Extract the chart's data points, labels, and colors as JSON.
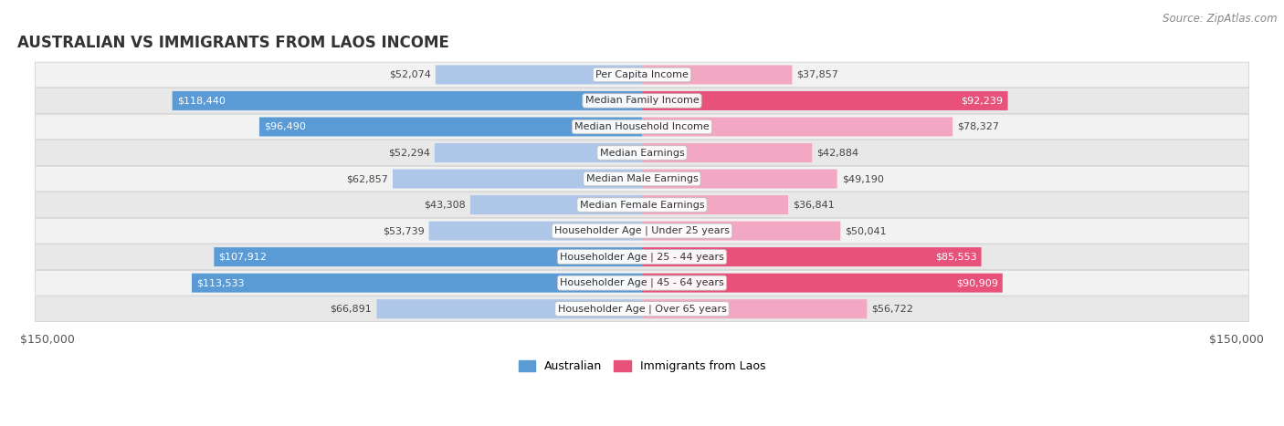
{
  "title": "AUSTRALIAN VS IMMIGRANTS FROM LAOS INCOME",
  "source": "Source: ZipAtlas.com",
  "categories": [
    "Per Capita Income",
    "Median Family Income",
    "Median Household Income",
    "Median Earnings",
    "Median Male Earnings",
    "Median Female Earnings",
    "Householder Age | Under 25 years",
    "Householder Age | 25 - 44 years",
    "Householder Age | 45 - 64 years",
    "Householder Age | Over 65 years"
  ],
  "australian_values": [
    52074,
    118440,
    96490,
    52294,
    62857,
    43308,
    53739,
    107912,
    113533,
    66891
  ],
  "immigrant_values": [
    37857,
    92239,
    78327,
    42884,
    49190,
    36841,
    50041,
    85553,
    90909,
    56722
  ],
  "australian_labels": [
    "$52,074",
    "$118,440",
    "$96,490",
    "$52,294",
    "$62,857",
    "$43,308",
    "$53,739",
    "$107,912",
    "$113,533",
    "$66,891"
  ],
  "immigrant_labels": [
    "$37,857",
    "$92,239",
    "$78,327",
    "$42,884",
    "$49,190",
    "$36,841",
    "$50,041",
    "$85,553",
    "$90,909",
    "$56,722"
  ],
  "max_value": 150000,
  "australian_color_light": "#aec6e8",
  "australian_color_strong": "#5b9bd5",
  "immigrant_color_light": "#f2a7c3",
  "immigrant_color_strong": "#e8527a",
  "threshold": 80000,
  "bg_color": "#ffffff",
  "row_bg_even": "#f2f2f2",
  "row_bg_odd": "#e8e8e8",
  "label_color_inside": "#ffffff",
  "label_color_outside": "#444444",
  "legend_label_australian": "Australian",
  "legend_label_immigrant": "Immigrants from Laos",
  "x_tick_left": "$150,000",
  "x_tick_right": "$150,000",
  "title_fontsize": 12,
  "source_fontsize": 8.5,
  "bar_label_fontsize": 8,
  "category_fontsize": 8,
  "legend_fontsize": 9,
  "tick_fontsize": 9
}
